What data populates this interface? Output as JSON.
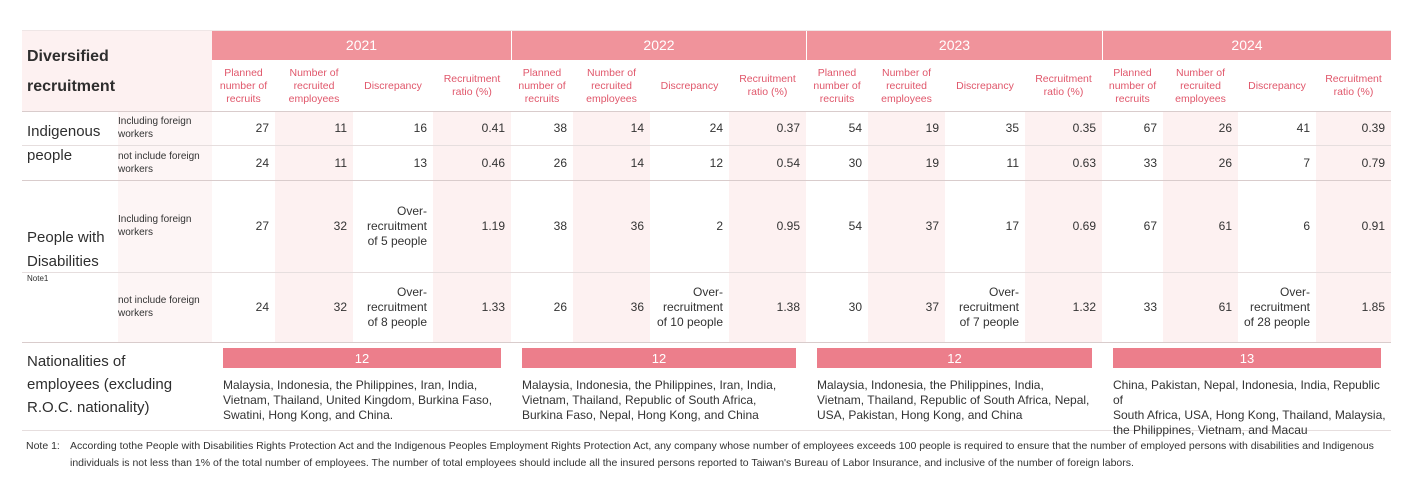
{
  "title_line1": "Diversified",
  "title_line2": "recruitment",
  "years": [
    "2021",
    "2022",
    "2023",
    "2024"
  ],
  "col_headers": {
    "planned": [
      "Planned",
      "number of",
      "recruits"
    ],
    "recruited": [
      "Number of",
      "recruited",
      "employees"
    ],
    "discrepancy": "Discrepancy",
    "ratio": [
      "Recruitment",
      "ratio (%)"
    ]
  },
  "indigenous": {
    "label_line1": "Indigenous",
    "label_line2": "people",
    "including_label": [
      "Including foreign",
      "workers"
    ],
    "not_including_label": [
      "not include foreign",
      "workers"
    ],
    "including": [
      {
        "planned": "27",
        "recruited": "11",
        "discrepancy": "16",
        "ratio": "0.41"
      },
      {
        "planned": "38",
        "recruited": "14",
        "discrepancy": "24",
        "ratio": "0.37"
      },
      {
        "planned": "54",
        "recruited": "19",
        "discrepancy": "35",
        "ratio": "0.35"
      },
      {
        "planned": "67",
        "recruited": "26",
        "discrepancy": "41",
        "ratio": "0.39"
      }
    ],
    "not_including": [
      {
        "planned": "24",
        "recruited": "11",
        "discrepancy": "13",
        "ratio": "0.46"
      },
      {
        "planned": "26",
        "recruited": "14",
        "discrepancy": "12",
        "ratio": "0.54"
      },
      {
        "planned": "30",
        "recruited": "19",
        "discrepancy": "11",
        "ratio": "0.63"
      },
      {
        "planned": "33",
        "recruited": "26",
        "discrepancy": "7",
        "ratio": "0.79"
      }
    ]
  },
  "disabilities": {
    "label_line1": "People with",
    "label_line2": "Disabilities",
    "note": "Note1",
    "including_label": [
      "Including foreign",
      "workers"
    ],
    "not_including_label": [
      "not include foreign",
      "workers"
    ],
    "including": [
      {
        "planned": "27",
        "recruited": "32",
        "discrepancy": [
          "Over-",
          "recruitment",
          "of 5 people"
        ],
        "ratio": "1.19"
      },
      {
        "planned": "38",
        "recruited": "36",
        "discrepancy": [
          "2"
        ],
        "ratio": "0.95"
      },
      {
        "planned": "54",
        "recruited": "37",
        "discrepancy": [
          "17"
        ],
        "ratio": "0.69"
      },
      {
        "planned": "67",
        "recruited": "61",
        "discrepancy": [
          "6"
        ],
        "ratio": "0.91"
      }
    ],
    "not_including": [
      {
        "planned": "24",
        "recruited": "32",
        "discrepancy": [
          "Over-",
          "recruitment",
          "of 8 people"
        ],
        "ratio": "1.33"
      },
      {
        "planned": "26",
        "recruited": "36",
        "discrepancy": [
          "Over-",
          "recruitment",
          "of 10 people"
        ],
        "ratio": "1.38"
      },
      {
        "planned": "30",
        "recruited": "37",
        "discrepancy": [
          "Over-",
          "recruitment",
          "of 7 people"
        ],
        "ratio": "1.32"
      },
      {
        "planned": "33",
        "recruited": "61",
        "discrepancy": [
          "Over-",
          "recruitment",
          "of 28 people"
        ],
        "ratio": "1.85"
      }
    ]
  },
  "nationalities": {
    "label_lines": [
      "Nationalities of",
      "employees (excluding",
      "R.O.C. nationality)"
    ],
    "counts": [
      "12",
      "12",
      "12",
      "13"
    ],
    "lists": [
      [
        "Malaysia, Indonesia, the Philippines, Iran, India,",
        "Vietnam, Thailand, United Kingdom, Burkina Faso,",
        "Swatini, Hong Kong, and China."
      ],
      [
        "Malaysia, Indonesia, the Philippines, Iran, India,",
        "Vietnam, Thailand, Republic of South Africa,",
        "Burkina Faso, Nepal, Hong Kong, and China"
      ],
      [
        "Malaysia, Indonesia, the Philippines, India,",
        "Vietnam, Thailand, Republic of South Africa, Nepal,",
        "USA, Pakistan, Hong Kong, and China"
      ],
      [
        "China, Pakistan, Nepal, Indonesia, India, Republic of",
        "South Africa,  USA, Hong Kong, Thailand,  Malaysia,",
        "the Philippines, Vietnam, and Macau"
      ]
    ]
  },
  "note": {
    "label": "Note 1:",
    "text": "According tothe People with Disabilities Rights Protection Act and the Indigenous Peoples Employment Rights Protection Act, any company whose number of employees exceeds 100 people is required to ensure that the number of employed persons with disabilities and Indigenous individuals is not less than 1% of the total number of employees. The number of total employees should include all the insured persons reported to Taiwan's Bureau of Labor Insurance, and inclusive of the number of foreign labors."
  },
  "colors": {
    "band": "#f0939b",
    "bar": "#ec7e8b",
    "header_text": "#e0576b",
    "shade": "#fdf1f1"
  }
}
